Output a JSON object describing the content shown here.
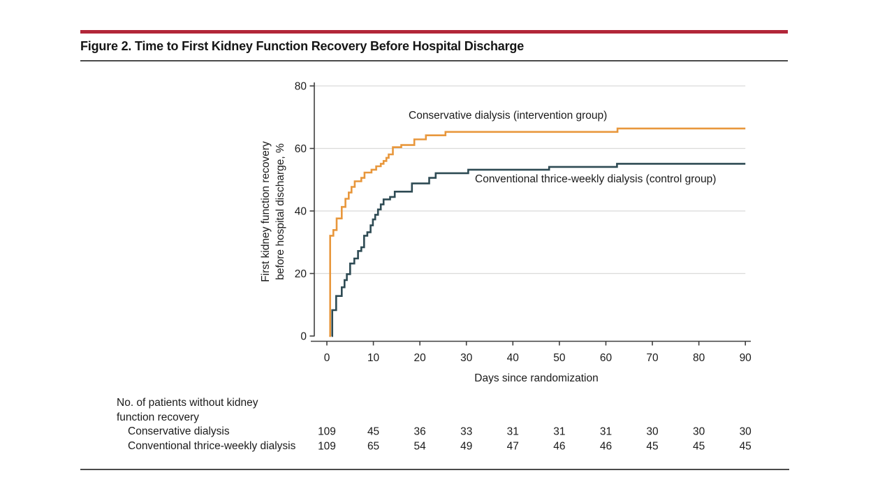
{
  "figure": {
    "title": "Figure 2. Time to First Kidney Function Recovery Before Hospital Discharge"
  },
  "colors": {
    "accent_bar": "#B22639",
    "divider": "#4A4A4A",
    "gridline": "#DBDBD9",
    "axis": "#3F3F3F",
    "text": "#1A1A1A"
  },
  "chart_data": {
    "type": "line",
    "subtype": "step-cumulative-incidence",
    "title": "Time to First Kidney Function Recovery Before Hospital Discharge",
    "xlabel": "Days since randomization",
    "ylabel": "First kidney function recovery before hospital discharge, %",
    "ylabel_lines": [
      "First kidney function recovery",
      "before hospital discharge, %"
    ],
    "xlim": [
      0,
      90
    ],
    "ylim": [
      0,
      80
    ],
    "x_ticks": [
      0,
      10,
      20,
      30,
      40,
      50,
      60,
      70,
      80,
      90
    ],
    "y_ticks": [
      0,
      20,
      40,
      60,
      80
    ],
    "grid": "horizontal-only",
    "legend_position": "inline-labels-near-curves",
    "series": [
      {
        "name": "Conservative dialysis (intervention group)",
        "color": "#E8973C",
        "points": [
          [
            0.5,
            0
          ],
          [
            0.7,
            32.1
          ],
          [
            1.4,
            33.9
          ],
          [
            2.1,
            37.6
          ],
          [
            3.2,
            41.3
          ],
          [
            4.0,
            43.9
          ],
          [
            4.7,
            45.9
          ],
          [
            5.3,
            47.7
          ],
          [
            6.0,
            49.5
          ],
          [
            7.4,
            50.6
          ],
          [
            8.1,
            52.3
          ],
          [
            9.6,
            53.2
          ],
          [
            10.6,
            54.3
          ],
          [
            11.6,
            55.1
          ],
          [
            12.2,
            56.0
          ],
          [
            12.8,
            57.0
          ],
          [
            13.3,
            58.1
          ],
          [
            14.2,
            60.4
          ],
          [
            16.0,
            61.1
          ],
          [
            18.8,
            62.9
          ],
          [
            21.3,
            64.2
          ],
          [
            25.5,
            65.3
          ],
          [
            62.5,
            66.4
          ]
        ],
        "end_x": 90,
        "final_value": 66.4
      },
      {
        "name": "Conventional thrice-weekly dialysis (control group)",
        "color": "#2E4B54",
        "points": [
          [
            1.0,
            0
          ],
          [
            1.15,
            8.3
          ],
          [
            2.0,
            12.8
          ],
          [
            3.2,
            15.6
          ],
          [
            3.8,
            17.9
          ],
          [
            4.3,
            19.8
          ],
          [
            5.0,
            23.2
          ],
          [
            5.9,
            24.8
          ],
          [
            6.7,
            27.2
          ],
          [
            7.4,
            28.4
          ],
          [
            8.0,
            32.1
          ],
          [
            8.7,
            33.2
          ],
          [
            9.4,
            35.4
          ],
          [
            9.9,
            37.3
          ],
          [
            10.4,
            38.8
          ],
          [
            11.0,
            40.5
          ],
          [
            11.6,
            42.1
          ],
          [
            12.2,
            43.7
          ],
          [
            13.6,
            44.5
          ],
          [
            14.6,
            46.2
          ],
          [
            18.3,
            48.8
          ],
          [
            22.0,
            50.6
          ],
          [
            23.4,
            52.1
          ],
          [
            30.4,
            53.2
          ],
          [
            47.8,
            54.1
          ],
          [
            62.4,
            55.1
          ]
        ],
        "end_x": 90,
        "final_value": 55.1
      }
    ],
    "risk_table": {
      "header_lines": [
        "No. of patients without kidney",
        "function recovery"
      ],
      "columns_at_days": [
        0,
        10,
        20,
        30,
        40,
        50,
        60,
        70,
        80,
        90
      ],
      "rows": [
        {
          "label": "Conservative dialysis",
          "values": [
            109,
            45,
            36,
            33,
            31,
            31,
            31,
            30,
            30,
            30
          ]
        },
        {
          "label": "Conventional thrice-weekly dialysis",
          "values": [
            109,
            65,
            54,
            49,
            47,
            46,
            46,
            45,
            45,
            45
          ]
        }
      ]
    }
  }
}
